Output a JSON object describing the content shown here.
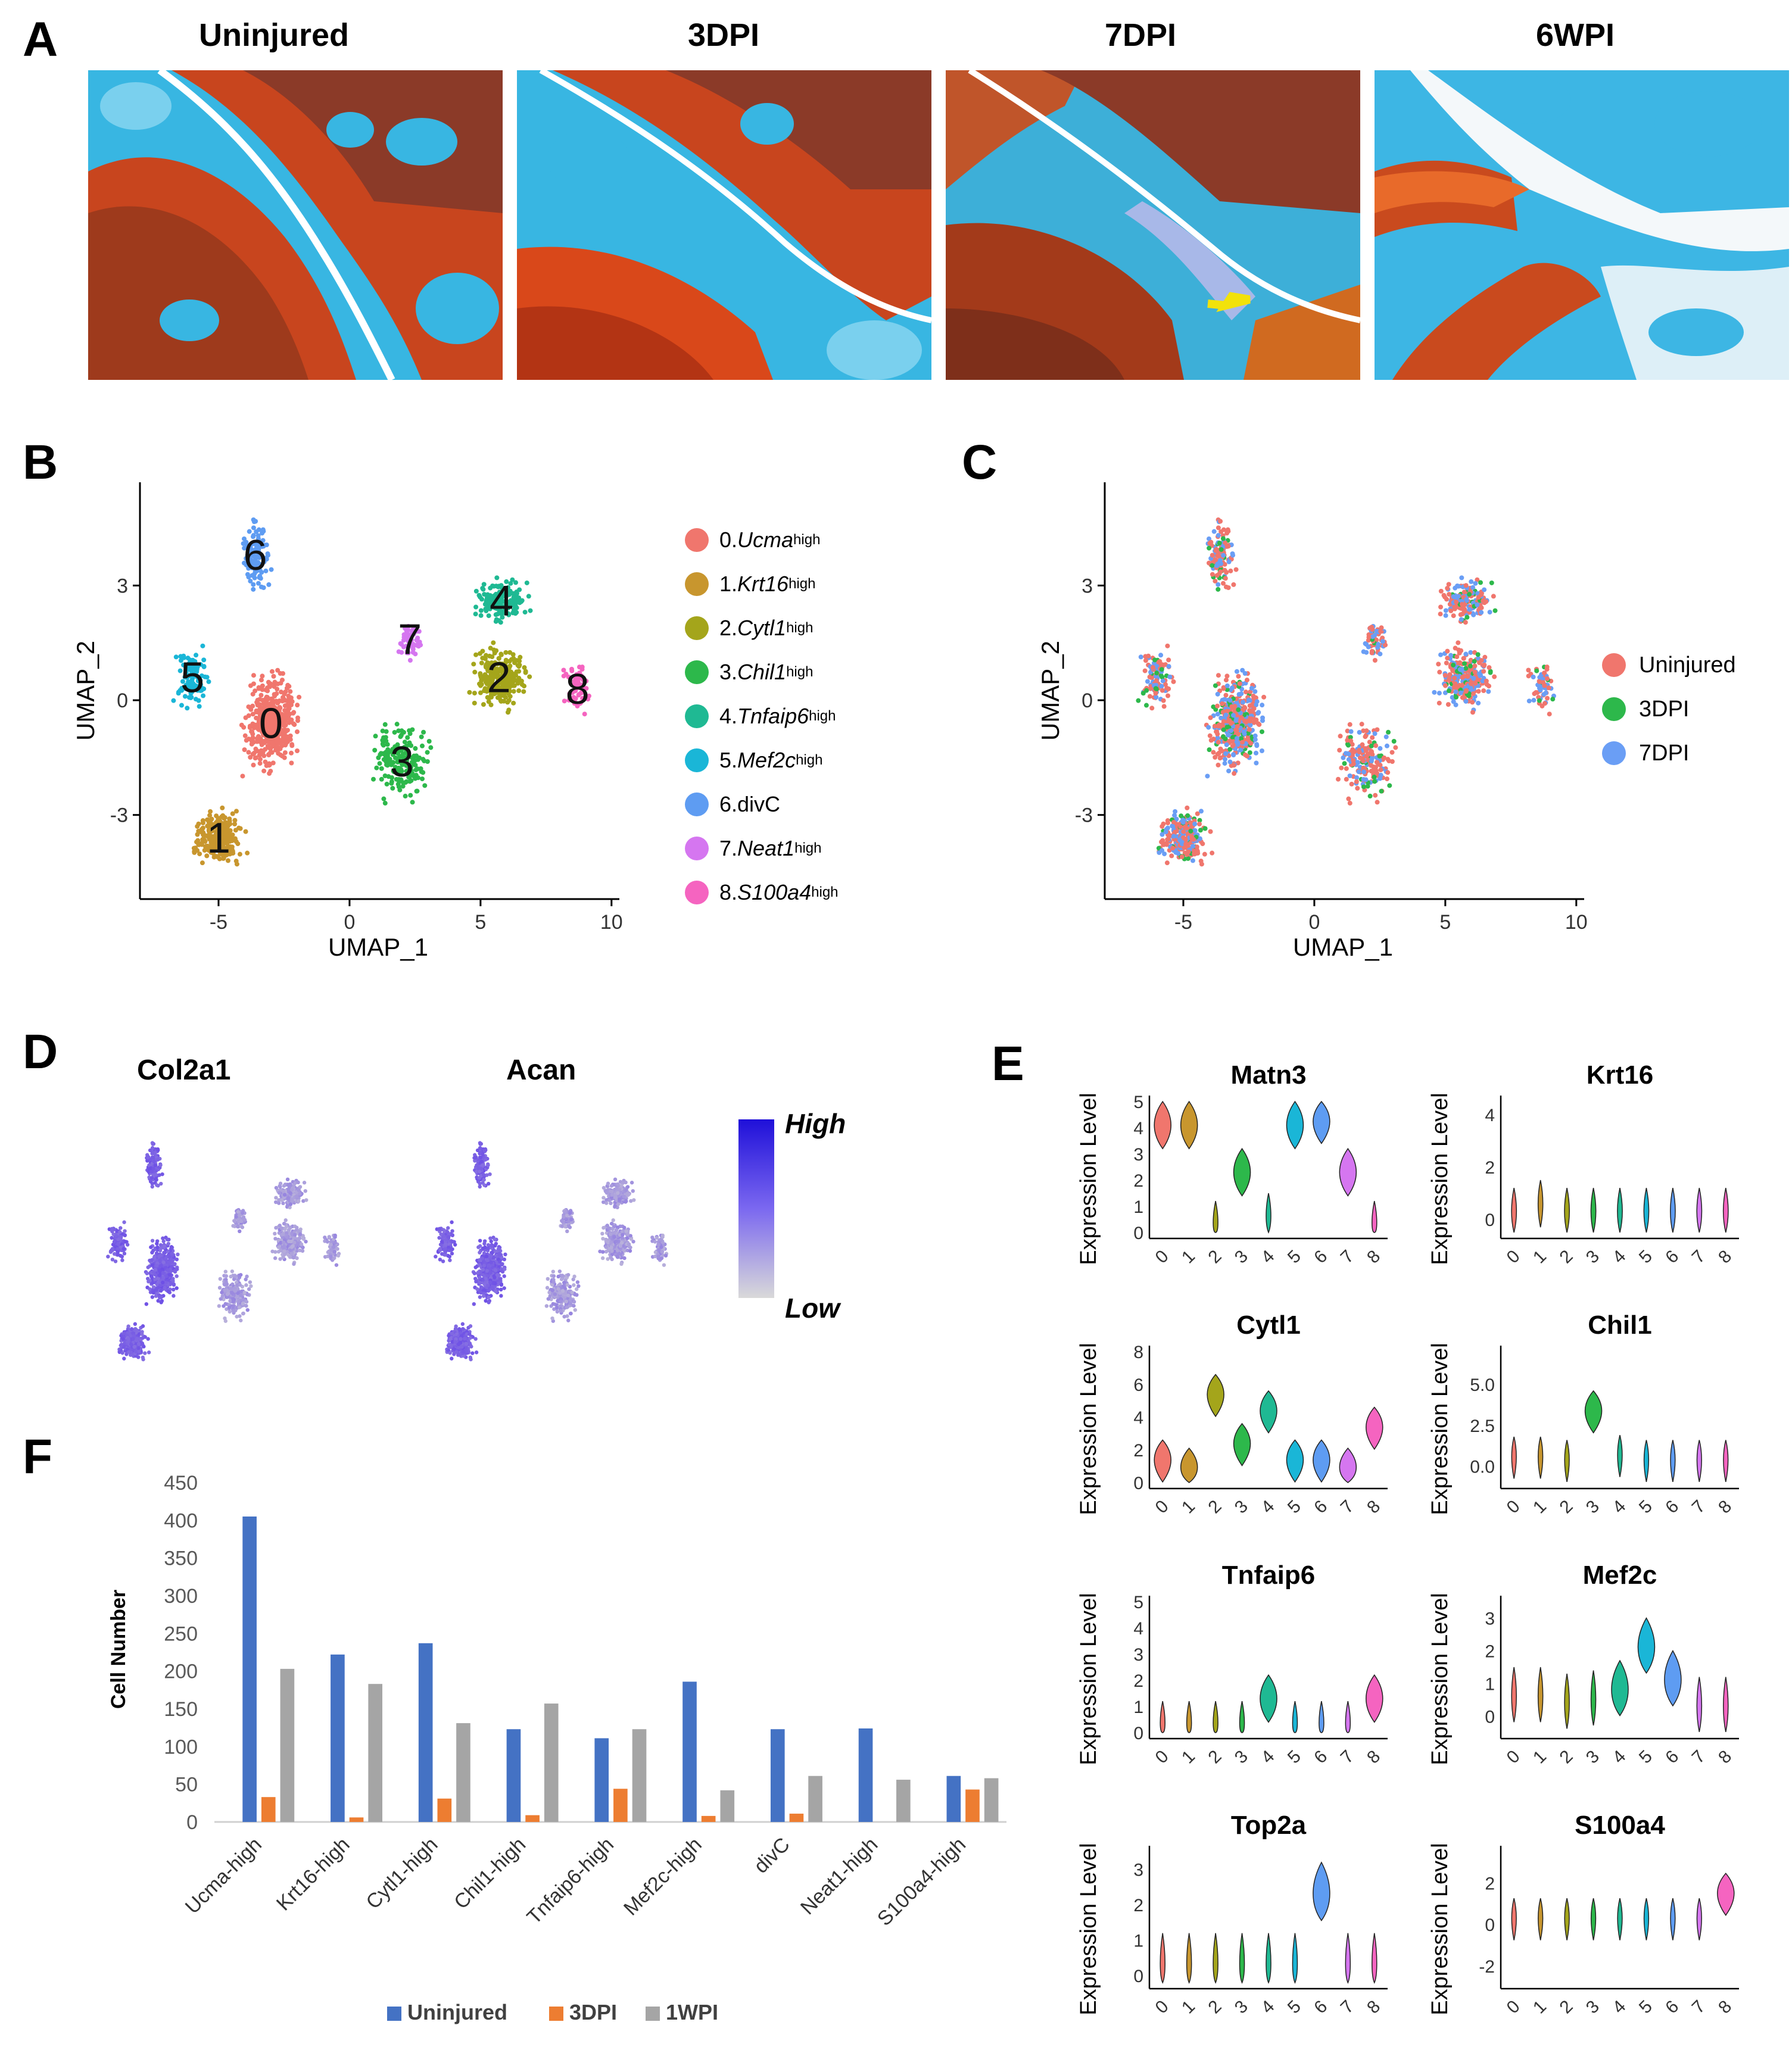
{
  "panels": {
    "A": "A",
    "B": "B",
    "C": "C",
    "D": "D",
    "E": "E",
    "F": "F"
  },
  "histology": {
    "titles": [
      "Uninjured",
      "3DPI",
      "7DPI",
      "6WPI"
    ]
  },
  "umap": {
    "xlabel": "UMAP_1",
    "ylabel": "UMAP_2",
    "x_ticks": [
      "-5",
      "0",
      "5",
      "10"
    ],
    "y_ticks": [
      "3",
      "0",
      "-3"
    ],
    "clusters": [
      {
        "id": "0",
        "name": "0.",
        "gene": "Ucma",
        "sup": "high",
        "color": "#F0766D"
      },
      {
        "id": "1",
        "name": "1.",
        "gene": "Krt16",
        "sup": "high",
        "color": "#C8962E"
      },
      {
        "id": "2",
        "name": "2.",
        "gene": "Cytl1",
        "sup": "high",
        "color": "#A4A51B"
      },
      {
        "id": "3",
        "name": "3.",
        "gene": "Chil1",
        "sup": "high",
        "color": "#2DB84B"
      },
      {
        "id": "4",
        "name": "4.",
        "gene": "Tnfaip6",
        "sup": "high",
        "color": "#1FB993"
      },
      {
        "id": "5",
        "name": "5.",
        "gene": "Mef2c",
        "sup": "high",
        "color": "#1AB6D7"
      },
      {
        "id": "6",
        "name": "6.divC",
        "gene": "",
        "sup": "",
        "color": "#5E9CF2"
      },
      {
        "id": "7",
        "name": "7.",
        "gene": "Neat1",
        "sup": "high",
        "color": "#D576F0"
      },
      {
        "id": "8",
        "name": "8. ",
        "gene": "S100a4",
        "sup": "high",
        "color": "#F564C0"
      }
    ],
    "conditions": [
      {
        "name": "Uninjured",
        "color": "#F0766D"
      },
      {
        "name": "3DPI",
        "color": "#2DB84B"
      },
      {
        "name": "7DPI",
        "color": "#6A9EF5"
      }
    ]
  },
  "featureplot": {
    "genes": [
      "Col2a1",
      "Acan"
    ],
    "scale_high": "High",
    "scale_low": "Low",
    "high_color": "#1F10D9",
    "low_color": "#D9D9D9"
  },
  "violin": {
    "ylabel": "Expression Level",
    "x_ticks": [
      "0",
      "1",
      "2",
      "3",
      "4",
      "5",
      "6",
      "7",
      "8"
    ],
    "genes": [
      {
        "name": "Matn3",
        "ylim": [
          0,
          5
        ],
        "ticks": [
          "0",
          "1",
          "2",
          "3",
          "4",
          "5"
        ],
        "medians": [
          3.8,
          3.8,
          0,
          2.0,
          0.3,
          3.8,
          4.0,
          2.0,
          0
        ]
      },
      {
        "name": "Krt16",
        "ylim": [
          -0.5,
          4.5
        ],
        "ticks": [
          "0",
          "2",
          "4"
        ],
        "medians": [
          0,
          0.3,
          0,
          0,
          0,
          0,
          0,
          0,
          0
        ]
      },
      {
        "name": "Cytl1",
        "ylim": [
          0,
          8
        ],
        "ticks": [
          "0",
          "2",
          "4",
          "6",
          "8"
        ],
        "medians": [
          1,
          0.5,
          5,
          2,
          4,
          1,
          1,
          0.5,
          3
        ]
      },
      {
        "name": "Chil1",
        "ylim": [
          -1,
          7
        ],
        "ticks": [
          "0.0",
          "2.5",
          "5.0"
        ],
        "medians": [
          0.2,
          0.2,
          0,
          3,
          0.3,
          0,
          0,
          0,
          0
        ]
      },
      {
        "name": "Tnfaip6",
        "ylim": [
          0,
          5
        ],
        "ticks": [
          "0",
          "1",
          "2",
          "3",
          "4",
          "5"
        ],
        "medians": [
          0,
          0,
          0,
          0,
          1,
          0,
          0,
          0,
          1
        ]
      },
      {
        "name": "Mef2c",
        "ylim": [
          -0.5,
          3.5
        ],
        "ticks": [
          "0",
          "1",
          "2",
          "3"
        ],
        "medians": [
          0.3,
          0.3,
          0.1,
          0.2,
          0.5,
          1.8,
          0.8,
          0,
          0
        ]
      },
      {
        "name": "Top2a",
        "ylim": [
          -0.2,
          3.5
        ],
        "ticks": [
          "0",
          "1",
          "2",
          "3"
        ],
        "medians": [
          0,
          0,
          0,
          0,
          0,
          0,
          2,
          0,
          0
        ]
      },
      {
        "name": "S100a4",
        "ylim": [
          -2.8,
          3.5
        ],
        "ticks": [
          "-2",
          "0",
          "2"
        ],
        "medians": [
          0,
          0,
          0,
          0,
          0,
          0,
          0,
          0,
          1.2
        ]
      }
    ]
  },
  "chart_data": {
    "type": "bar",
    "categories": [
      "Ucma-high",
      "Krt16-high",
      "Cytl1-high",
      "Chil1-high",
      "Tnfaip6-high",
      "Mef2c-high",
      "divC",
      "Neat1-high",
      "S100a4-high"
    ],
    "series": [
      {
        "name": "Uninjured",
        "color": "#4472C4",
        "values": [
          405,
          222,
          237,
          123,
          111,
          186,
          123,
          124,
          61
        ]
      },
      {
        "name": "3DPI",
        "color": "#ED7D31",
        "values": [
          33,
          6,
          31,
          9,
          44,
          8,
          11,
          0,
          43
        ]
      },
      {
        "name": "1WPI",
        "color": "#A5A5A5",
        "values": [
          203,
          183,
          131,
          157,
          123,
          42,
          61,
          56,
          58
        ]
      }
    ],
    "ylabel": "Cell Number",
    "ylim": [
      0,
      450
    ],
    "yticks": [
      "0",
      "50",
      "100",
      "150",
      "200",
      "250",
      "300",
      "350",
      "400",
      "450"
    ],
    "legend": "bottom"
  }
}
